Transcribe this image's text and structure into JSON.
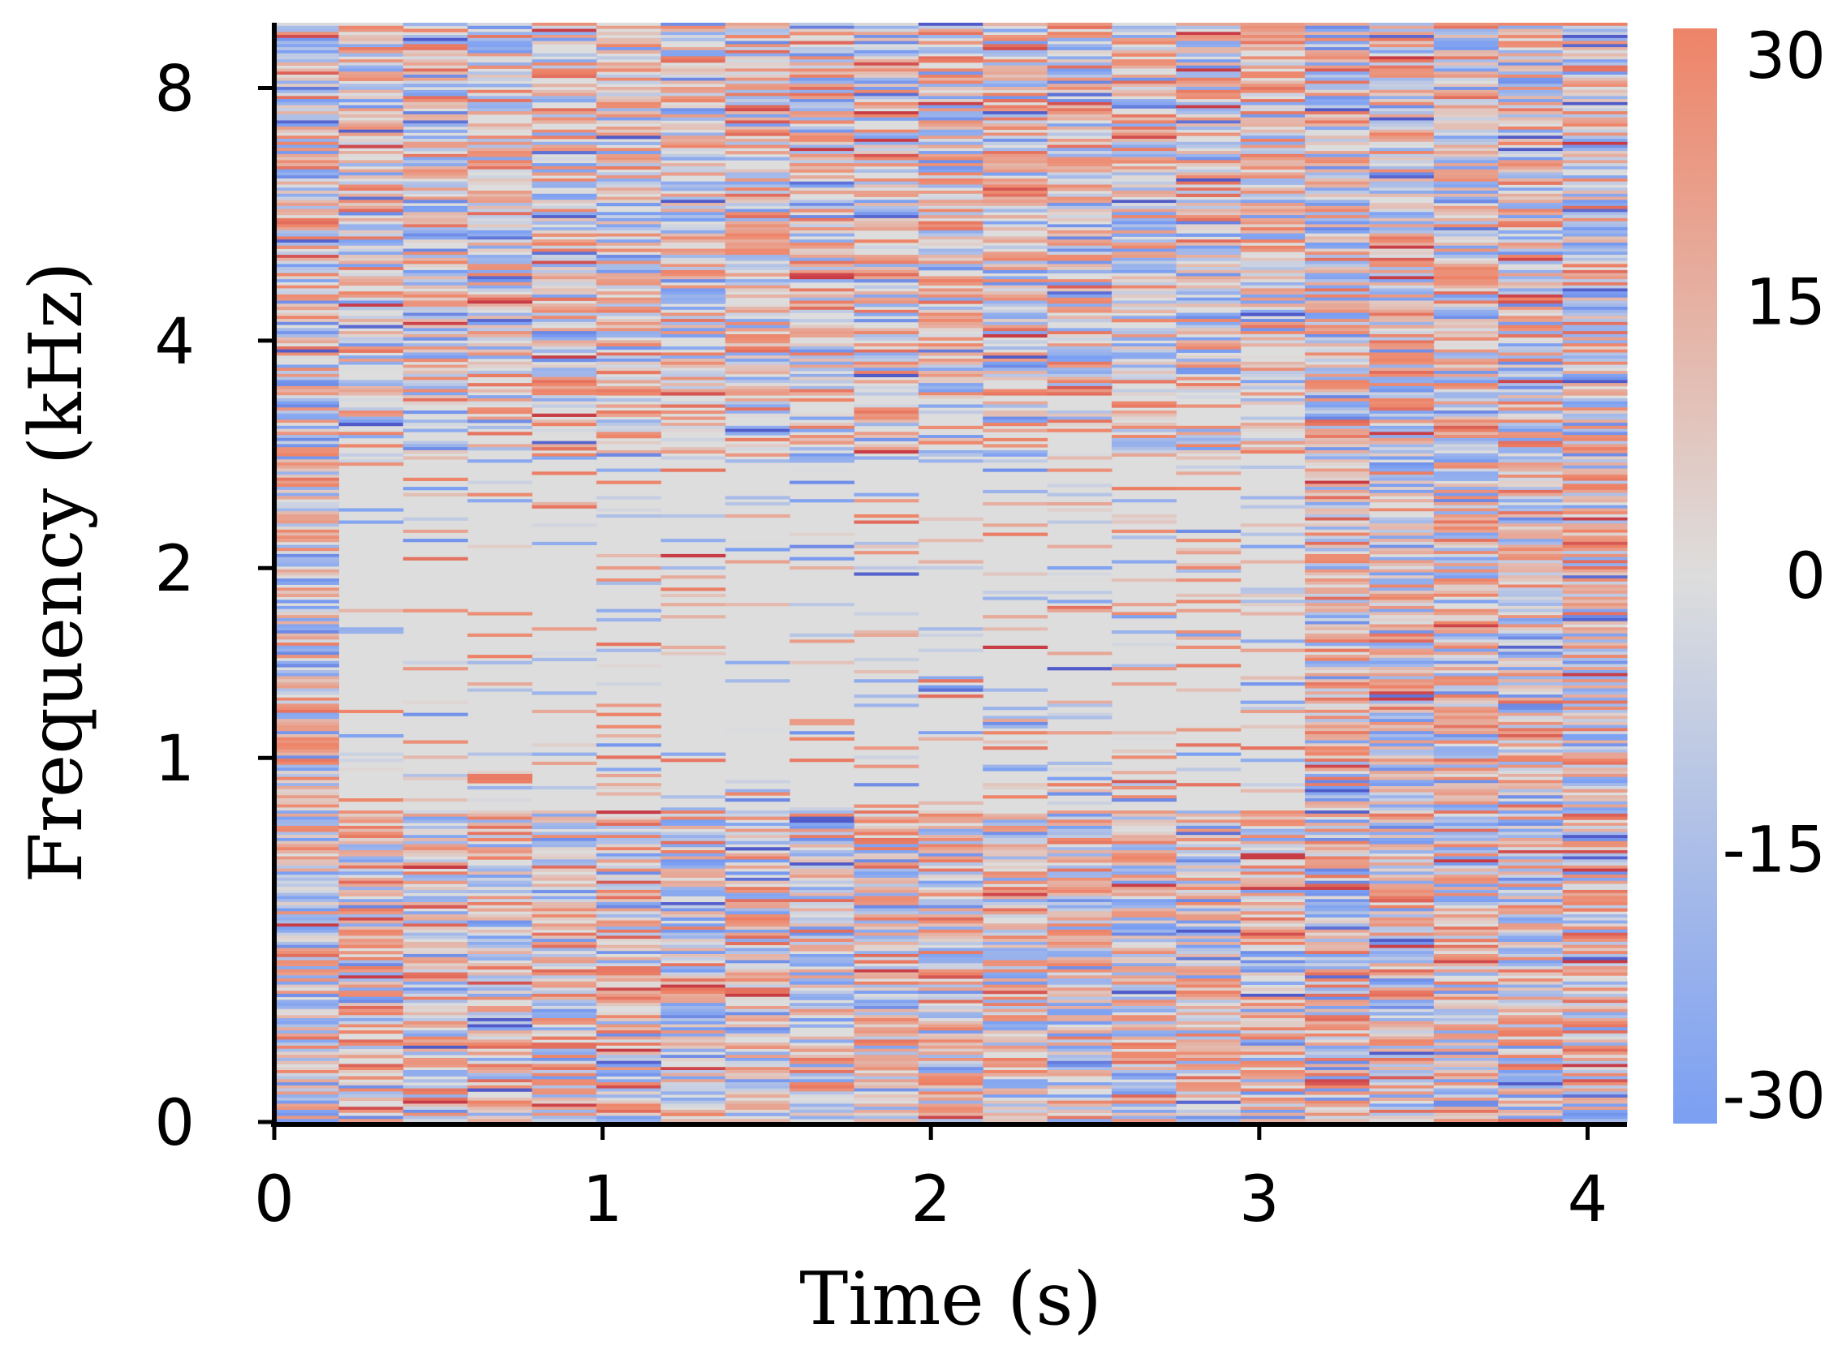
{
  "chart_data": {
    "type": "heatmap",
    "title": "",
    "xlabel": "Time (s)",
    "ylabel": "Frequency (kHz)",
    "x_ticks": [
      "0",
      "1",
      "2",
      "3",
      "4"
    ],
    "x_tick_values": [
      0,
      1,
      2,
      3,
      4
    ],
    "xlim": [
      0,
      4.12
    ],
    "y_ticks": [
      "0",
      "1",
      "2",
      "4",
      "8"
    ],
    "y_tick_values_khz": [
      0,
      1,
      2,
      4,
      8
    ],
    "y_scale": "mel (non-linear)",
    "ylim_khz": [
      0,
      9.5
    ],
    "grid": false,
    "colorbar": {
      "ticks": [
        "30",
        "15",
        "0",
        "-15",
        "-30"
      ],
      "tick_values": [
        30,
        15,
        0,
        -15,
        -30
      ],
      "range": [
        -30,
        30
      ],
      "colormap": "coolwarm",
      "low_color": "#7b9ff2",
      "mid_color": "#dddddd",
      "high_color": "#ee8468"
    },
    "time_frames": 21,
    "frequency_bins": 360,
    "structure": {
      "quiet_band_khz": [
        0.8,
        2.8
      ],
      "quiet_band_time_s": [
        0.2,
        3.2
      ],
      "active_regions": [
        "all frequencies at t < 0.2 s",
        "all frequencies at t > 3.2 s",
        "frequencies below 0.8 kHz",
        "frequencies above about 3 kHz"
      ]
    }
  }
}
